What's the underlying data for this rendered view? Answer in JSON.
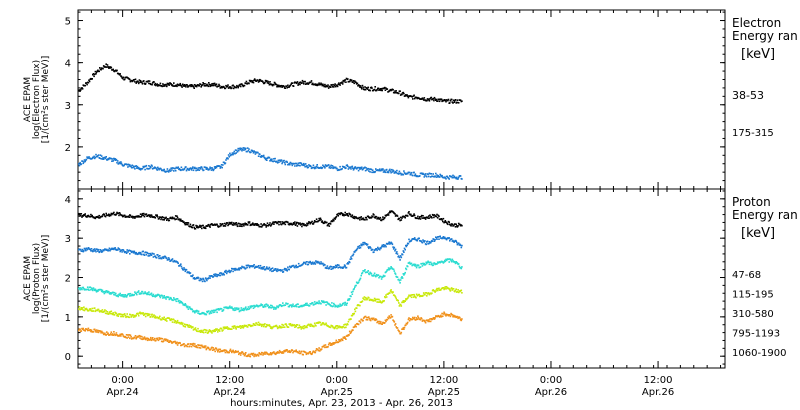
{
  "chart_data": [
    {
      "type": "scatter",
      "panel": "electron",
      "ylabel_lines": [
        "ACE EPAM",
        "log(Electron Flux)",
        "[1/(cm²s ster MeV)]"
      ],
      "ylim": [
        1.0,
        5.25
      ],
      "y_ticks": [
        "2",
        "3",
        "4",
        "5"
      ],
      "legend_title": [
        "Electron",
        "Energy ran",
        "[keV]"
      ],
      "series": [
        {
          "name": "38-53",
          "color": "#000000",
          "t": [
            0,
            2,
            4,
            6,
            8,
            10,
            12,
            14,
            16,
            18,
            20,
            22,
            24,
            26,
            28,
            30,
            32,
            34,
            36,
            38,
            40,
            42,
            44,
            46,
            48,
            50,
            52,
            54,
            56,
            58,
            60,
            62,
            64,
            66,
            68,
            70,
            72,
            74,
            76,
            78,
            80,
            82,
            84,
            86
          ],
          "values": [
            3.35,
            3.55,
            3.8,
            3.95,
            3.85,
            3.65,
            3.6,
            3.55,
            3.55,
            3.5,
            3.5,
            3.5,
            3.45,
            3.45,
            3.5,
            3.5,
            3.45,
            3.45,
            3.45,
            3.55,
            3.6,
            3.55,
            3.5,
            3.45,
            3.5,
            3.55,
            3.55,
            3.5,
            3.45,
            3.5,
            3.6,
            3.55,
            3.4,
            3.4,
            3.4,
            3.35,
            3.3,
            3.2,
            3.2,
            3.15,
            3.15,
            3.1,
            3.1,
            3.1
          ]
        },
        {
          "name": "175-315",
          "color": "#1a78d0",
          "t": [
            0,
            2,
            4,
            6,
            8,
            10,
            12,
            14,
            16,
            18,
            20,
            22,
            24,
            26,
            28,
            30,
            32,
            34,
            36,
            38,
            40,
            42,
            44,
            46,
            48,
            50,
            52,
            54,
            56,
            58,
            60,
            62,
            64,
            66,
            68,
            70,
            72,
            74,
            76,
            78,
            80,
            82,
            84,
            86
          ],
          "values": [
            1.6,
            1.75,
            1.8,
            1.75,
            1.7,
            1.6,
            1.55,
            1.5,
            1.55,
            1.5,
            1.45,
            1.5,
            1.5,
            1.5,
            1.5,
            1.5,
            1.55,
            1.85,
            1.95,
            1.95,
            1.85,
            1.75,
            1.7,
            1.65,
            1.6,
            1.6,
            1.55,
            1.55,
            1.55,
            1.5,
            1.55,
            1.5,
            1.5,
            1.45,
            1.45,
            1.45,
            1.4,
            1.4,
            1.35,
            1.35,
            1.35,
            1.3,
            1.3,
            1.3
          ]
        }
      ]
    },
    {
      "type": "scatter",
      "panel": "proton",
      "ylabel_lines": [
        "ACE EPAM",
        "log(Proton Flux)",
        "[1/(cm²s ster MeV)]"
      ],
      "ylim": [
        -0.3,
        4.25
      ],
      "y_ticks": [
        "0",
        "1",
        "2",
        "3",
        "4"
      ],
      "legend_title": [
        "Proton",
        "Energy ran",
        "[keV]"
      ],
      "series": [
        {
          "name": "47-68",
          "color": "#000000",
          "t": [
            0,
            2,
            4,
            6,
            8,
            10,
            12,
            14,
            16,
            18,
            20,
            22,
            24,
            26,
            28,
            30,
            32,
            34,
            36,
            38,
            40,
            42,
            44,
            46,
            48,
            50,
            52,
            54,
            56,
            58,
            60,
            62,
            64,
            66,
            68,
            70,
            72,
            74,
            76,
            78,
            80,
            82,
            84,
            86
          ],
          "values": [
            3.6,
            3.6,
            3.55,
            3.6,
            3.65,
            3.6,
            3.55,
            3.6,
            3.6,
            3.55,
            3.5,
            3.55,
            3.4,
            3.3,
            3.3,
            3.35,
            3.35,
            3.4,
            3.35,
            3.4,
            3.35,
            3.35,
            3.4,
            3.4,
            3.4,
            3.35,
            3.4,
            3.5,
            3.35,
            3.6,
            3.65,
            3.55,
            3.5,
            3.6,
            3.5,
            3.7,
            3.5,
            3.65,
            3.55,
            3.55,
            3.6,
            3.45,
            3.35,
            3.35
          ]
        },
        {
          "name": "115-195",
          "color": "#1a78d0",
          "t": [
            0,
            2,
            4,
            6,
            8,
            10,
            12,
            14,
            16,
            18,
            20,
            22,
            24,
            26,
            28,
            30,
            32,
            34,
            36,
            38,
            40,
            42,
            44,
            46,
            48,
            50,
            52,
            54,
            56,
            58,
            60,
            62,
            64,
            66,
            68,
            70,
            72,
            74,
            76,
            78,
            80,
            82,
            84,
            86
          ],
          "values": [
            2.7,
            2.75,
            2.7,
            2.7,
            2.75,
            2.7,
            2.65,
            2.65,
            2.6,
            2.55,
            2.5,
            2.4,
            2.2,
            2.0,
            1.95,
            2.05,
            2.1,
            2.2,
            2.25,
            2.3,
            2.3,
            2.25,
            2.2,
            2.2,
            2.3,
            2.35,
            2.4,
            2.4,
            2.25,
            2.3,
            2.3,
            2.7,
            2.9,
            2.7,
            2.8,
            2.9,
            2.5,
            2.95,
            3.0,
            2.9,
            3.0,
            3.05,
            2.95,
            2.8
          ]
        },
        {
          "name": "310-580",
          "color": "#2adcd0",
          "t": [
            0,
            2,
            4,
            6,
            8,
            10,
            12,
            14,
            16,
            18,
            20,
            22,
            24,
            26,
            28,
            30,
            32,
            34,
            36,
            38,
            40,
            42,
            44,
            46,
            48,
            50,
            52,
            54,
            56,
            58,
            60,
            62,
            64,
            66,
            68,
            70,
            72,
            74,
            76,
            78,
            80,
            82,
            84,
            86
          ],
          "values": [
            1.75,
            1.75,
            1.7,
            1.65,
            1.6,
            1.55,
            1.6,
            1.65,
            1.6,
            1.55,
            1.5,
            1.45,
            1.3,
            1.15,
            1.1,
            1.15,
            1.2,
            1.25,
            1.2,
            1.25,
            1.3,
            1.3,
            1.25,
            1.35,
            1.3,
            1.3,
            1.35,
            1.4,
            1.35,
            1.3,
            1.35,
            1.8,
            2.2,
            2.1,
            2.0,
            2.3,
            1.9,
            2.4,
            2.3,
            2.4,
            2.35,
            2.45,
            2.45,
            2.25
          ]
        },
        {
          "name": "795-1193",
          "color": "#c8e80a",
          "t": [
            0,
            2,
            4,
            6,
            8,
            10,
            12,
            14,
            16,
            18,
            20,
            22,
            24,
            26,
            28,
            30,
            32,
            34,
            36,
            38,
            40,
            42,
            44,
            46,
            48,
            50,
            52,
            54,
            56,
            58,
            60,
            62,
            64,
            66,
            68,
            70,
            72,
            74,
            76,
            78,
            80,
            82,
            84,
            86
          ],
          "values": [
            1.25,
            1.2,
            1.2,
            1.15,
            1.1,
            1.05,
            1.05,
            1.1,
            1.05,
            1.0,
            0.95,
            0.9,
            0.8,
            0.7,
            0.65,
            0.65,
            0.7,
            0.75,
            0.75,
            0.8,
            0.85,
            0.8,
            0.75,
            0.8,
            0.8,
            0.75,
            0.8,
            0.85,
            0.8,
            0.75,
            0.8,
            1.2,
            1.5,
            1.45,
            1.4,
            1.7,
            1.3,
            1.55,
            1.55,
            1.6,
            1.7,
            1.75,
            1.7,
            1.65
          ]
        },
        {
          "name": "1060-1900",
          "color": "#f0901a",
          "t": [
            0,
            2,
            4,
            6,
            8,
            10,
            12,
            14,
            16,
            18,
            20,
            22,
            24,
            26,
            28,
            30,
            32,
            34,
            36,
            38,
            40,
            42,
            44,
            46,
            48,
            50,
            52,
            54,
            56,
            58,
            60,
            62,
            64,
            66,
            68,
            70,
            72,
            74,
            76,
            78,
            80,
            82,
            84,
            86
          ],
          "values": [
            0.7,
            0.7,
            0.65,
            0.6,
            0.6,
            0.55,
            0.5,
            0.5,
            0.45,
            0.45,
            0.4,
            0.35,
            0.3,
            0.3,
            0.25,
            0.2,
            0.15,
            0.15,
            0.1,
            0.05,
            0.05,
            0.1,
            0.1,
            0.15,
            0.15,
            0.1,
            0.1,
            0.2,
            0.3,
            0.4,
            0.5,
            0.8,
            1.0,
            0.95,
            0.85,
            1.05,
            0.6,
            0.95,
            1.0,
            0.9,
            1.0,
            1.1,
            1.05,
            0.95
          ]
        }
      ]
    }
  ],
  "x_ticks": [
    {
      "t": 10,
      "time": "0:00",
      "date": "Apr.24"
    },
    {
      "t": 34,
      "time": "12:00",
      "date": "Apr.24"
    },
    {
      "t": 58,
      "time": "0:00",
      "date": "Apr.25"
    },
    {
      "t": 82,
      "time": "12:00",
      "date": "Apr.25"
    },
    {
      "t": 106,
      "time": "0:00",
      "date": "Apr.26"
    },
    {
      "t": 130,
      "time": "12:00",
      "date": "Apr.26"
    }
  ],
  "x_range_hours": [
    0,
    145
  ],
  "xlabel": "hours:minutes, Apr. 23, 2013 - Apr. 26, 2013"
}
